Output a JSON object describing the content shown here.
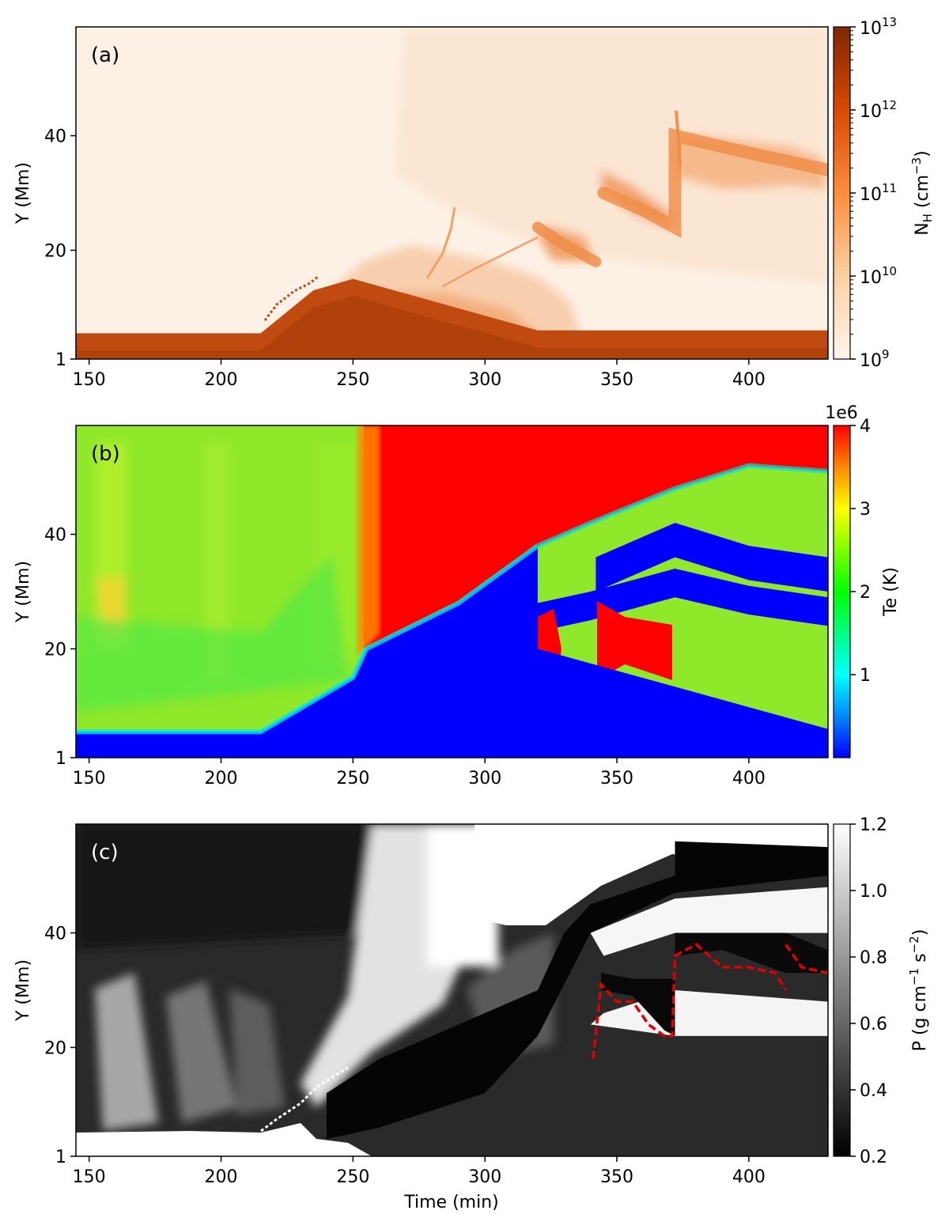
{
  "chart_data": [
    {
      "type": "heatmap",
      "panel_label": "(a)",
      "ylabel": "Y (Mm)",
      "xlim": [
        145,
        430
      ],
      "ylim": [
        1,
        59
      ],
      "xticks": [
        150,
        200,
        250,
        300,
        350,
        400
      ],
      "yticks": [
        1,
        20,
        40
      ],
      "colorbar": {
        "label": "N_H (cm^-3)",
        "label_main": "N",
        "label_sub": "H",
        "label_unit": " (cm",
        "label_exp": "−3",
        "label_close": ")",
        "scale": "log",
        "range": [
          1000000000.0,
          10000000000000.0
        ],
        "tick_base": "10",
        "tick_exponents": [
          "9",
          "10",
          "11",
          "12",
          "13"
        ],
        "colormap": [
          "#fff5eb",
          "#fdd0a2",
          "#fd8d3c",
          "#d94801",
          "#7f2704"
        ]
      },
      "features": {
        "chromosphere_top": [
          [
            145,
            5.5
          ],
          [
            215,
            5.5
          ],
          [
            235,
            13
          ],
          [
            250,
            15
          ],
          [
            320,
            6
          ],
          [
            345,
            6
          ],
          [
            350,
            6
          ],
          [
            430,
            6
          ]
        ],
        "dense_band_lower": [
          [
            320,
            24
          ],
          [
            330,
            21
          ],
          [
            342,
            18
          ]
        ],
        "dense_band_upper": [
          [
            345,
            30
          ],
          [
            360,
            27
          ],
          [
            372,
            24
          ],
          [
            372,
            40
          ],
          [
            400,
            37
          ],
          [
            430,
            34
          ]
        ]
      }
    },
    {
      "type": "heatmap",
      "panel_label": "(b)",
      "ylabel": "Y (Mm)",
      "xlim": [
        145,
        430
      ],
      "ylim": [
        1,
        59
      ],
      "xticks": [
        150,
        200,
        250,
        300,
        350,
        400
      ],
      "yticks": [
        1,
        20,
        40
      ],
      "colorbar": {
        "label": "Te (K)",
        "scale": "linear",
        "range": [
          0,
          4000000
        ],
        "offset_text": "1e6",
        "ticks": [
          1,
          2,
          3,
          4
        ],
        "tick_labels": [
          "1",
          "2",
          "3",
          "4"
        ],
        "colormap": [
          "#0000ff",
          "#00ffff",
          "#00ff00",
          "#ffff00",
          "#ff0000"
        ]
      },
      "features": {
        "transition_region": [
          [
            145,
            5.5
          ],
          [
            215,
            5.5
          ],
          [
            250,
            15
          ],
          [
            255,
            20
          ],
          [
            290,
            28
          ],
          [
            320,
            38
          ],
          [
            340,
            42
          ],
          [
            372,
            48
          ],
          [
            400,
            52
          ],
          [
            430,
            51
          ]
        ],
        "hot_region_start_time": 254,
        "cool_band_lower": [
          [
            320,
            28
          ],
          [
            340,
            30
          ],
          [
            372,
            34
          ],
          [
            400,
            31
          ],
          [
            430,
            29
          ]
        ],
        "cool_band_upper": [
          [
            342,
            36
          ],
          [
            372,
            42
          ],
          [
            400,
            38
          ],
          [
            430,
            36
          ]
        ]
      }
    },
    {
      "type": "heatmap",
      "panel_label": "(c)",
      "xlabel": "Time (min)",
      "ylabel": "Y (Mm)",
      "xlim": [
        145,
        430
      ],
      "ylim": [
        1,
        59
      ],
      "xticks": [
        150,
        200,
        250,
        300,
        350,
        400
      ],
      "yticks": [
        1,
        20,
        40
      ],
      "colorbar": {
        "label": "P (g cm^-1 s^-2)",
        "label_text": "P (g cm",
        "label_exp1": "−1",
        "label_mid": " s",
        "label_exp2": "−2",
        "label_close": ")",
        "scale": "linear",
        "range": [
          0.2,
          1.2
        ],
        "ticks": [
          0.2,
          0.4,
          0.6,
          0.8,
          1.0,
          1.2
        ],
        "tick_labels": [
          "0.2",
          "0.4",
          "0.6",
          "0.8",
          "1.0",
          "1.2"
        ],
        "colormap": [
          "#000000",
          "#ffffff"
        ]
      },
      "features": {
        "contour_color": "#e00000",
        "contour_style": "dashed",
        "contour_lower": [
          [
            341,
            18
          ],
          [
            344,
            31
          ],
          [
            350,
            28
          ],
          [
            356,
            28
          ],
          [
            362,
            24
          ],
          [
            368,
            22
          ],
          [
            371,
            22
          ],
          [
            372,
            36
          ],
          [
            380,
            38
          ],
          [
            390,
            34
          ],
          [
            400,
            34
          ],
          [
            410,
            33
          ],
          [
            414,
            30
          ]
        ],
        "contour_upper": [
          [
            414,
            38
          ],
          [
            420,
            34
          ],
          [
            430,
            33
          ]
        ]
      }
    }
  ]
}
